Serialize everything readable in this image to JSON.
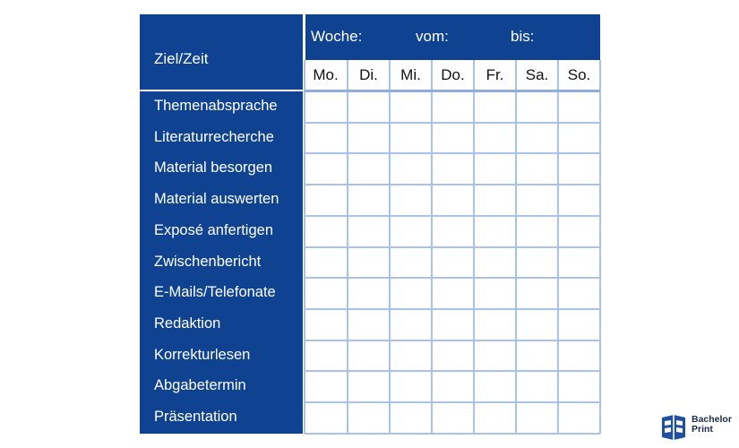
{
  "planner": {
    "corner_label": "Ziel/Zeit",
    "week": {
      "label": "Woche:",
      "from_label": "vom:",
      "to_label": "bis:"
    },
    "days": [
      "Mo.",
      "Di.",
      "Mi.",
      "Do.",
      "Fr.",
      "Sa.",
      "So."
    ],
    "tasks": [
      "Themenabsprache",
      "Literaturrecherche",
      "Material besorgen",
      "Material auswerten",
      "Exposé anfertigen",
      "Zwischenbericht",
      "E-Mails/Telefonate",
      "Redaktion",
      "Korrekturlesen",
      "Abgabetermin",
      "Präsentation"
    ]
  },
  "logo": {
    "line1": "Bachelor",
    "line2": "Print"
  },
  "colors": {
    "header_blue": "#0f4391",
    "grid_line": "#a9c2e8",
    "text_dark": "#111111"
  }
}
